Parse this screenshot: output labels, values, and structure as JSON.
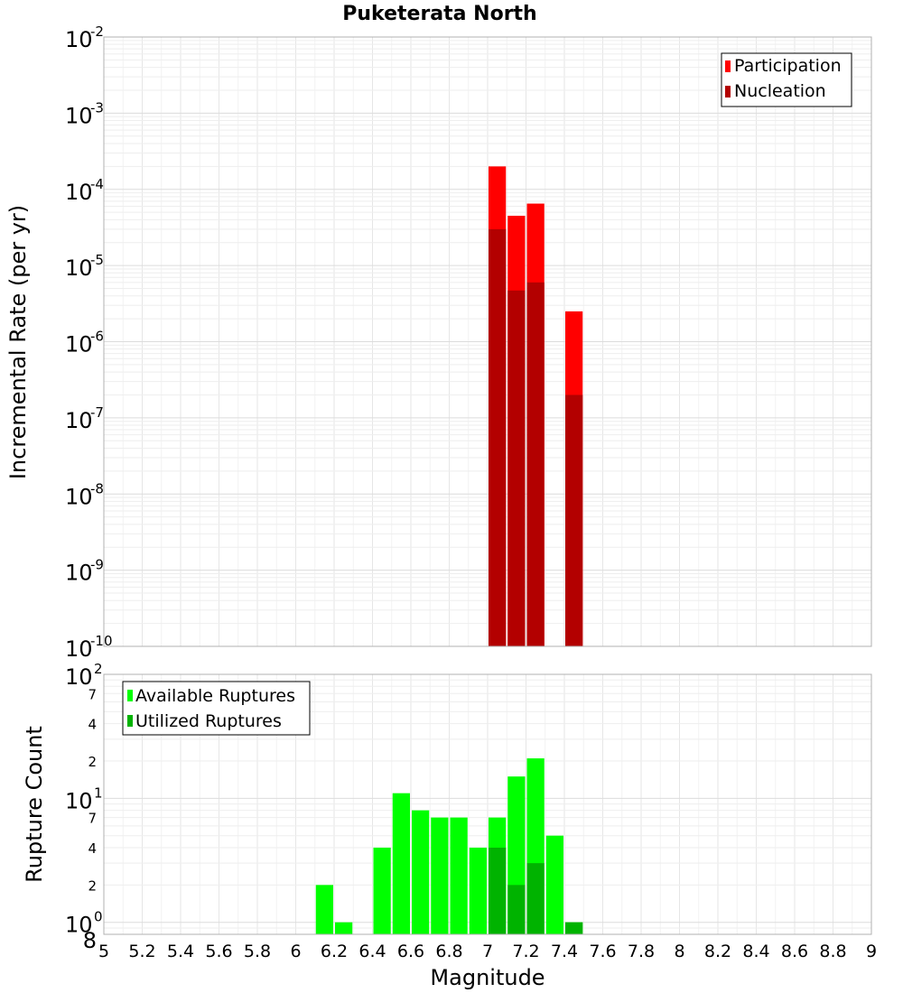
{
  "chart_data": [
    {
      "type": "bar",
      "title": "Puketerata North",
      "xlabel": "",
      "ylabel": "Incremental Rate (per yr)",
      "yscale": "log",
      "ylim": [
        1e-10,
        0.01
      ],
      "xlim": [
        5,
        9
      ],
      "bar_width": 0.1,
      "colors": {
        "Participation": "#ff0000",
        "Nucleation": "#b30000"
      },
      "y_tick_labels": [
        {
          "value": 1e-10,
          "base": "10",
          "exp": "-10"
        },
        {
          "value": 1e-09,
          "base": "10",
          "exp": "-9"
        },
        {
          "value": 1e-08,
          "base": "10",
          "exp": "-8"
        },
        {
          "value": 1e-07,
          "base": "10",
          "exp": "-7"
        },
        {
          "value": 1e-06,
          "base": "10",
          "exp": "-6"
        },
        {
          "value": 1e-05,
          "base": "10",
          "exp": "-5"
        },
        {
          "value": 0.0001,
          "base": "10",
          "exp": "-4"
        },
        {
          "value": 0.001,
          "base": "10",
          "exp": "-3"
        },
        {
          "value": 0.01,
          "base": "10",
          "exp": "-2"
        }
      ],
      "series": [
        {
          "name": "Participation",
          "x": [
            7.05,
            7.15,
            7.25,
            7.45
          ],
          "values": [
            0.0002,
            4.5e-05,
            6.5e-05,
            2.5e-06
          ]
        },
        {
          "name": "Nucleation",
          "x": [
            7.05,
            7.15,
            7.25,
            7.45
          ],
          "values": [
            3e-05,
            4.7e-06,
            6e-06,
            2e-07
          ]
        }
      ],
      "legend": {
        "position": "top-right",
        "entries": [
          "Participation",
          "Nucleation"
        ]
      }
    },
    {
      "type": "bar",
      "title": "",
      "xlabel": "Magnitude",
      "ylabel": "Rupture Count",
      "yscale": "log",
      "ylim": [
        0.8,
        100
      ],
      "xlim": [
        5,
        9
      ],
      "bar_width": 0.1,
      "colors": {
        "Available Ruptures": "#00ff00",
        "Utilized Ruptures": "#00b300"
      },
      "y_tick_labels": [
        {
          "value": 1,
          "base": "10",
          "exp": "0"
        },
        {
          "value": 10,
          "base": "10",
          "exp": "1"
        },
        {
          "value": 100,
          "base": "10",
          "exp": "2"
        }
      ],
      "y_minor_labels": [
        {
          "value": 0.8,
          "label": "8"
        },
        {
          "value": 2,
          "label": "2"
        },
        {
          "value": 4,
          "label": "4"
        },
        {
          "value": 7,
          "label": "7"
        },
        {
          "value": 20,
          "label": "2"
        },
        {
          "value": 40,
          "label": "4"
        },
        {
          "value": 70,
          "label": "7"
        }
      ],
      "x_tick_labels": [
        "5",
        "5.2",
        "5.4",
        "5.6",
        "5.8",
        "6",
        "6.2",
        "6.4",
        "6.6",
        "6.8",
        "7",
        "7.2",
        "7.4",
        "7.6",
        "7.8",
        "8",
        "8.2",
        "8.4",
        "8.6",
        "8.8",
        "9"
      ],
      "series": [
        {
          "name": "Available Ruptures",
          "x": [
            6.15,
            6.25,
            6.45,
            6.55,
            6.65,
            6.75,
            6.85,
            6.95,
            7.05,
            7.15,
            7.25,
            7.35,
            7.45
          ],
          "values": [
            2,
            1,
            4,
            11,
            8,
            7,
            7,
            4,
            7,
            15,
            21,
            5,
            1
          ]
        },
        {
          "name": "Utilized Ruptures",
          "x": [
            7.05,
            7.15,
            7.25,
            7.45
          ],
          "values": [
            4,
            2,
            3,
            1
          ]
        }
      ],
      "legend": {
        "position": "top-left",
        "entries": [
          "Available Ruptures",
          "Utilized Ruptures"
        ]
      }
    }
  ]
}
